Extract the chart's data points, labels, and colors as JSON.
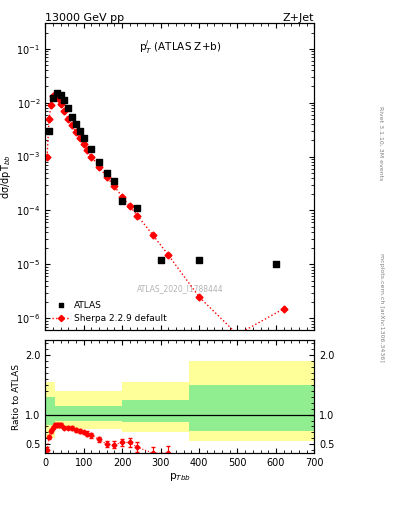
{
  "title_top": "13000 GeV pp",
  "title_right": "Z+Jet",
  "ylabel_main": "dσ/dpT$_{bb}$",
  "xlabel": "p$_{Tbb}$",
  "ylabel_ratio": "Ratio to ATLAS",
  "annotation": "p$_T^j$ (ATLAS Z+b)",
  "watermark": "ATLAS_2020_I1788444",
  "right_label_top": "Rivet 3.1.10, 3M events",
  "right_label_bottom": "mcplots.cern.ch [arXiv:1306.3436]",
  "atlas_x": [
    10,
    20,
    30,
    40,
    50,
    60,
    70,
    80,
    90,
    100,
    120,
    140,
    160,
    180,
    200,
    240,
    300,
    400,
    600
  ],
  "atlas_y": [
    0.003,
    0.012,
    0.015,
    0.014,
    0.011,
    0.008,
    0.0055,
    0.004,
    0.003,
    0.0022,
    0.0014,
    0.0008,
    0.0005,
    0.00035,
    0.00015,
    0.00011,
    1.2e-05,
    1.2e-05,
    1e-05
  ],
  "sherpa_x": [
    5,
    10,
    15,
    20,
    25,
    30,
    35,
    40,
    50,
    60,
    70,
    80,
    90,
    100,
    110,
    120,
    140,
    160,
    180,
    200,
    220,
    240,
    280,
    320,
    400,
    500,
    620
  ],
  "sherpa_y": [
    0.001,
    0.005,
    0.009,
    0.0135,
    0.014,
    0.013,
    0.0115,
    0.0095,
    0.007,
    0.005,
    0.0038,
    0.0028,
    0.0022,
    0.0017,
    0.0013,
    0.001,
    0.00065,
    0.00042,
    0.00028,
    0.00018,
    0.00012,
    8e-05,
    3.5e-05,
    1.5e-05,
    2.5e-06,
    5e-07,
    1.5e-06
  ],
  "ratio_x": [
    5,
    10,
    15,
    20,
    25,
    30,
    35,
    40,
    50,
    60,
    70,
    80,
    90,
    100,
    110,
    120,
    140,
    160,
    180,
    200,
    220,
    240,
    280,
    320
  ],
  "ratio_y": [
    0.4,
    0.62,
    0.72,
    0.78,
    0.82,
    0.83,
    0.82,
    0.82,
    0.78,
    0.78,
    0.77,
    0.74,
    0.72,
    0.7,
    0.68,
    0.65,
    0.58,
    0.5,
    0.49,
    0.53,
    0.53,
    0.45,
    0.35,
    0.35
  ],
  "ratio_yerr": [
    0.05,
    0.04,
    0.03,
    0.03,
    0.03,
    0.03,
    0.03,
    0.03,
    0.03,
    0.03,
    0.03,
    0.03,
    0.03,
    0.03,
    0.04,
    0.04,
    0.05,
    0.05,
    0.06,
    0.06,
    0.07,
    0.08,
    0.1,
    0.12
  ],
  "band_x_edges": [
    0,
    25,
    100,
    200,
    375,
    700
  ],
  "band_green_lo": [
    0.82,
    0.9,
    0.9,
    0.87,
    0.72,
    0.72
  ],
  "band_green_hi": [
    1.3,
    1.15,
    1.15,
    1.25,
    1.5,
    1.5
  ],
  "band_yellow_lo": [
    0.6,
    0.75,
    0.75,
    0.7,
    0.55,
    0.55
  ],
  "band_yellow_hi": [
    1.55,
    1.4,
    1.4,
    1.55,
    1.9,
    1.9
  ],
  "ylim_main": [
    6e-07,
    0.3
  ],
  "ylim_ratio": [
    0.35,
    2.25
  ],
  "xlim": [
    0,
    700
  ],
  "ratio_yticks": [
    0.5,
    1.0,
    2.0
  ],
  "sherpa_color": "red",
  "atlas_color": "black",
  "background_color": "white"
}
